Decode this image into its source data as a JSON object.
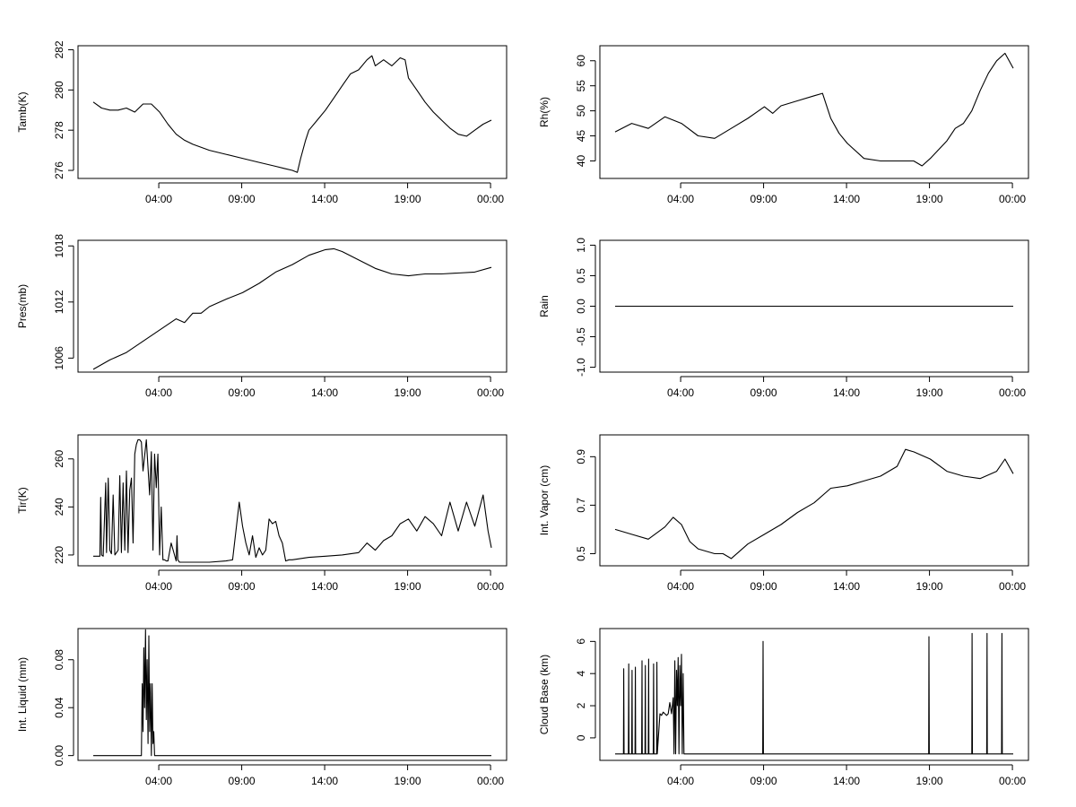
{
  "chart_data": [
    {
      "id": "tamb",
      "type": "line",
      "ylabel": "Tamb(K)",
      "yticks": [
        276,
        278,
        280,
        282
      ],
      "yrange": [
        275.6,
        282.2
      ],
      "x_ticks": [
        "04:00",
        "09:00",
        "14:00",
        "19:00",
        "00:00"
      ],
      "x_hours": [
        0.0,
        0.5,
        1,
        1.5,
        2,
        2.5,
        3,
        3.5,
        4,
        4.5,
        5,
        5.5,
        6,
        7,
        8,
        9,
        10,
        11,
        11.5,
        12,
        12.3,
        12.5,
        12.8,
        13,
        13.5,
        14,
        14.5,
        15,
        15.5,
        16,
        16.5,
        16.8,
        17,
        17.5,
        18,
        18.5,
        18.8,
        19,
        19.5,
        20,
        20.5,
        21,
        21.5,
        22,
        22.5,
        23,
        23.5,
        24
      ],
      "series": [
        {
          "values": [
            279.4,
            279.1,
            279.0,
            279.0,
            279.1,
            278.9,
            279.3,
            279.3,
            278.9,
            278.3,
            277.8,
            277.5,
            277.3,
            277.0,
            276.8,
            276.6,
            276.4,
            276.2,
            276.1,
            276.0,
            275.9,
            276.6,
            277.5,
            278.0,
            278.5,
            279.0,
            279.6,
            280.2,
            280.8,
            281.0,
            281.5,
            281.7,
            281.2,
            281.5,
            281.2,
            281.6,
            281.5,
            280.6,
            280.0,
            279.4,
            278.9,
            278.5,
            278.1,
            277.8,
            277.7,
            278.0,
            278.3,
            278.5
          ]
        }
      ]
    },
    {
      "id": "rh",
      "type": "line",
      "ylabel": "Rh(%)",
      "yticks": [
        40,
        45,
        50,
        55,
        60
      ],
      "yrange": [
        36.5,
        63.0
      ],
      "x_ticks": [
        "04:00",
        "09:00",
        "14:00",
        "19:00",
        "00:00"
      ],
      "x_hours": [
        0.0,
        1,
        2,
        3,
        4,
        5,
        6,
        7,
        8,
        9,
        9.5,
        10,
        11,
        12,
        12.5,
        13,
        13.5,
        14,
        15,
        16,
        17,
        18,
        18.5,
        19,
        20,
        20.5,
        21,
        21.5,
        22,
        22.5,
        23,
        23.5,
        24
      ],
      "series": [
        {
          "values": [
            45.8,
            47.5,
            46.5,
            48.8,
            47.5,
            45.0,
            44.5,
            46.5,
            48.5,
            50.8,
            49.5,
            51.0,
            52.0,
            53.0,
            53.5,
            48.5,
            45.5,
            43.5,
            40.5,
            40.0,
            40.0,
            40.0,
            39.0,
            40.5,
            44.0,
            46.5,
            47.5,
            50.0,
            54.0,
            57.5,
            60.0,
            61.5,
            58.5
          ]
        }
      ]
    },
    {
      "id": "pres",
      "type": "line",
      "ylabel": "Pres(mb)",
      "yticks": [
        1006,
        1012,
        1018
      ],
      "yrange": [
        1004.5,
        1018.6
      ],
      "x_ticks": [
        "04:00",
        "09:00",
        "14:00",
        "19:00",
        "00:00"
      ],
      "x_hours": [
        0.0,
        1,
        2,
        3,
        4,
        5,
        5.5,
        6,
        6.5,
        7,
        8,
        9,
        10,
        11,
        12,
        13,
        14,
        14.5,
        15,
        16,
        17,
        18,
        19,
        20,
        21,
        22,
        23,
        24
      ],
      "series": [
        {
          "values": [
            1004.8,
            1005.8,
            1006.6,
            1007.8,
            1009.0,
            1010.2,
            1009.8,
            1010.8,
            1010.8,
            1011.5,
            1012.3,
            1013.0,
            1014.0,
            1015.2,
            1016.0,
            1017.0,
            1017.6,
            1017.7,
            1017.4,
            1016.5,
            1015.6,
            1015.0,
            1014.8,
            1015.0,
            1015.0,
            1015.1,
            1015.2,
            1015.7
          ]
        }
      ]
    },
    {
      "id": "rain",
      "type": "line",
      "ylabel": "Rain",
      "yticks": [
        -1.0,
        -0.5,
        0.0,
        0.5,
        1.0
      ],
      "yrange": [
        -1.08,
        1.08
      ],
      "x_ticks": [
        "04:00",
        "09:00",
        "14:00",
        "19:00",
        "00:00"
      ],
      "x_hours": [
        0.0,
        24
      ],
      "series": [
        {
          "values": [
            0.0,
            0.0
          ]
        }
      ]
    },
    {
      "id": "tir",
      "type": "line",
      "ylabel": "Tir(K)",
      "yticks": [
        220,
        240,
        260
      ],
      "yrange": [
        215.5,
        270.0
      ],
      "x_ticks": [
        "04:00",
        "09:00",
        "14:00",
        "19:00",
        "00:00"
      ],
      "x_hours": [
        0.0,
        0.4,
        0.45,
        0.5,
        0.6,
        0.75,
        0.8,
        0.9,
        1.0,
        1.1,
        1.2,
        1.3,
        1.5,
        1.6,
        1.7,
        1.8,
        1.9,
        2.0,
        2.1,
        2.2,
        2.3,
        2.4,
        2.5,
        2.6,
        2.7,
        2.8,
        2.9,
        3.0,
        3.2,
        3.4,
        3.5,
        3.6,
        3.7,
        3.8,
        3.9,
        4.0,
        4.1,
        4.2,
        4.3,
        4.4,
        4.5,
        4.7,
        5,
        5.05,
        5.1,
        5.2,
        5.5,
        6,
        7,
        8,
        8.4,
        8.6,
        8.8,
        9.0,
        9.2,
        9.4,
        9.6,
        9.8,
        10.0,
        10.2,
        10.4,
        10.6,
        10.8,
        11.0,
        11.2,
        11.4,
        11.6,
        11.8,
        12,
        13,
        14,
        15,
        16,
        16.5,
        17,
        17.5,
        18,
        18.5,
        19,
        19.5,
        20,
        20.5,
        21,
        21.5,
        22,
        22.5,
        23,
        23.5,
        23.8,
        24
      ],
      "series": [
        {
          "values": [
            219.5,
            219.5,
            244.0,
            220.0,
            219.5,
            250.0,
            221.0,
            252.0,
            222.0,
            220.5,
            245.0,
            220.0,
            222.0,
            253.0,
            221.0,
            250.0,
            222.0,
            255.0,
            221.0,
            247.0,
            252.0,
            225.0,
            262.0,
            266.0,
            268.0,
            268.0,
            267.0,
            255.0,
            268.0,
            245.0,
            263.0,
            222.0,
            262.0,
            248.0,
            262.0,
            220.0,
            240.0,
            218.0,
            218.0,
            217.5,
            217.5,
            225.0,
            217.5,
            228.0,
            218.0,
            217.0,
            217.0,
            217.0,
            217.0,
            217.5,
            218.0,
            230.0,
            242.0,
            232.0,
            225.0,
            220.0,
            228.0,
            219.0,
            223.0,
            220.0,
            222.0,
            235.0,
            233.0,
            234.0,
            228.0,
            225.0,
            217.5,
            218.0,
            218.0,
            219.0,
            219.5,
            220.0,
            221.0,
            225.0,
            222.0,
            226.0,
            228.0,
            233.0,
            235.0,
            230.0,
            236.0,
            233.0,
            228.0,
            242.0,
            230.0,
            242.0,
            232.0,
            245.0,
            230.0,
            223.0
          ]
        }
      ]
    },
    {
      "id": "vapor",
      "type": "line",
      "ylabel": "Int. Vapor (cm)",
      "yticks": [
        0.5,
        0.7,
        0.9
      ],
      "yrange": [
        0.45,
        0.99
      ],
      "x_ticks": [
        "04:00",
        "09:00",
        "14:00",
        "19:00",
        "00:00"
      ],
      "x_hours": [
        0.0,
        1,
        2,
        3,
        3.5,
        4,
        4.5,
        5,
        6,
        6.5,
        7,
        8,
        9,
        10,
        11,
        12,
        13,
        14,
        15,
        16,
        17,
        17.5,
        18,
        19,
        20,
        21,
        22,
        23,
        23.5,
        24
      ],
      "series": [
        {
          "values": [
            0.6,
            0.58,
            0.56,
            0.61,
            0.65,
            0.62,
            0.55,
            0.52,
            0.5,
            0.5,
            0.48,
            0.54,
            0.58,
            0.62,
            0.67,
            0.71,
            0.77,
            0.78,
            0.8,
            0.82,
            0.86,
            0.93,
            0.92,
            0.89,
            0.84,
            0.82,
            0.81,
            0.84,
            0.89,
            0.83
          ]
        }
      ]
    },
    {
      "id": "liquid",
      "type": "line",
      "ylabel": "Int. Liquid (mm)",
      "yticks": [
        0.0,
        0.04,
        0.08
      ],
      "yrange": [
        -0.004,
        0.106
      ],
      "x_ticks": [
        "04:00",
        "09:00",
        "14:00",
        "19:00",
        "00:00"
      ],
      "x_hours": [
        0.0,
        2.9,
        2.95,
        3.0,
        3.05,
        3.1,
        3.15,
        3.2,
        3.25,
        3.3,
        3.35,
        3.4,
        3.45,
        3.5,
        3.55,
        3.6,
        3.65,
        3.7,
        3.8,
        24
      ],
      "series": [
        {
          "values": [
            0.0,
            0.0,
            0.06,
            0.02,
            0.09,
            0.04,
            0.105,
            0.03,
            0.08,
            0.01,
            0.1,
            0.02,
            0.06,
            0.0,
            0.06,
            0.01,
            0.02,
            0.0,
            0.0,
            0.0
          ]
        }
      ]
    },
    {
      "id": "cloud",
      "type": "line",
      "ylabel": "Cloud Base (km)",
      "yticks": [
        0,
        2,
        4,
        6
      ],
      "yrange": [
        -1.4,
        6.8
      ],
      "x_ticks": [
        "04:00",
        "09:00",
        "14:00",
        "19:00",
        "00:00"
      ],
      "x_hours": [
        0.0,
        0.5,
        0.52,
        0.54,
        0.8,
        0.82,
        0.84,
        1.0,
        1.02,
        1.04,
        1.2,
        1.22,
        1.24,
        1.6,
        1.62,
        1.64,
        1.8,
        1.82,
        1.84,
        2.0,
        2.02,
        2.04,
        2.3,
        2.32,
        2.34,
        2.5,
        2.52,
        2.54,
        2.7,
        2.8,
        2.9,
        3.0,
        3.1,
        3.2,
        3.3,
        3.4,
        3.5,
        3.55,
        3.6,
        3.65,
        3.7,
        3.75,
        3.8,
        3.85,
        3.9,
        3.95,
        4.0,
        4.05,
        4.1,
        4.15,
        4.2,
        8.9,
        8.92,
        8.94,
        18.9,
        18.92,
        18.94,
        21.5,
        21.52,
        21.54,
        22.4,
        22.42,
        22.44,
        23.3,
        23.32,
        23.34,
        24
      ],
      "series": [
        {
          "values": [
            -1.0,
            -1.0,
            4.3,
            -1.0,
            -1.0,
            4.6,
            -1.0,
            -1.0,
            4.2,
            -1.0,
            -1.0,
            4.4,
            -1.0,
            -1.0,
            4.8,
            -1.0,
            -1.0,
            4.5,
            -1.0,
            -1.0,
            4.9,
            -1.0,
            -1.0,
            4.6,
            -1.0,
            -1.0,
            4.7,
            -1.0,
            1.5,
            1.4,
            1.6,
            1.5,
            1.4,
            1.5,
            2.2,
            1.5,
            2.5,
            -1.0,
            4.8,
            -1.0,
            4.2,
            2.0,
            5.0,
            -1.0,
            4.5,
            2.0,
            5.2,
            -1.0,
            4.0,
            -1.0,
            -1.0,
            -1.0,
            6.0,
            -1.0,
            -1.0,
            6.3,
            -1.0,
            -1.0,
            6.5,
            -1.0,
            -1.0,
            6.5,
            -1.0,
            -1.0,
            6.5,
            -1.0,
            -1.0
          ]
        }
      ]
    }
  ]
}
